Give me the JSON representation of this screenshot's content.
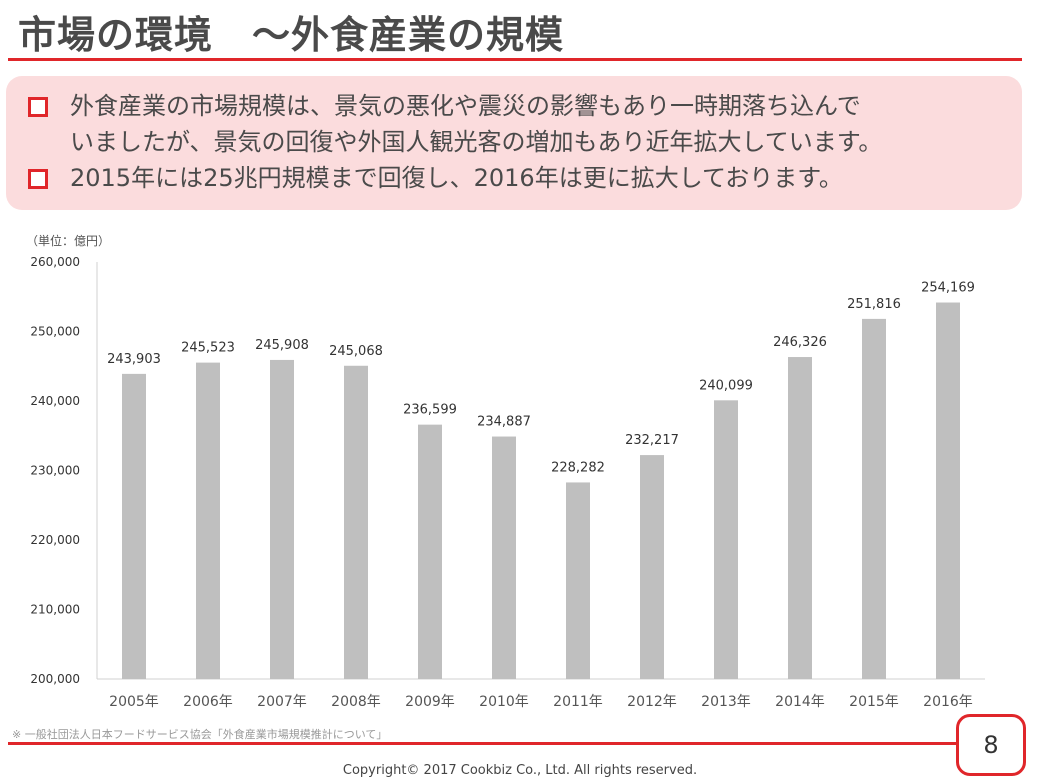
{
  "slide": {
    "title": "市場の環境　～外食産業の規模",
    "bullets": [
      "外食産業の市場規模は、景気の悪化や震災の影響もあり一時期落ち込んで\nいましたが、景気の回復や外国人観光客の増加もあり近年拡大しています。",
      "2015年には25兆円規模まで回復し、2016年は更に拡大しております。"
    ],
    "unit_note": "（単位：億円）",
    "source_note": "※ 一般社団法人日本フードサービス協会「外食産業市場規模推計について」",
    "page_number": "8",
    "copyright": "Copyright© 2017 Cookbiz Co., Ltd. All rights reserved."
  },
  "colors": {
    "accent": "#e0262a",
    "callout_bg": "#fbdcdd",
    "bar": "#bfbfbf"
  },
  "chart_data": {
    "type": "bar",
    "categories": [
      "2005年",
      "2006年",
      "2007年",
      "2008年",
      "2009年",
      "2010年",
      "2011年",
      "2012年",
      "2013年",
      "2014年",
      "2015年",
      "2016年"
    ],
    "values": [
      243903,
      245523,
      245908,
      245068,
      236599,
      234887,
      228282,
      232217,
      240099,
      246326,
      251816,
      254169
    ],
    "value_labels": [
      "243,903",
      "245,523",
      "245,908",
      "245,068",
      "236,599",
      "234,887",
      "228,282",
      "232,217",
      "240,099",
      "246,326",
      "251,816",
      "254,169"
    ],
    "y_ticks": [
      200000,
      210000,
      220000,
      230000,
      240000,
      250000,
      260000
    ],
    "y_tick_labels": [
      "200,000",
      "210,000",
      "220,000",
      "230,000",
      "240,000",
      "250,000",
      "260,000"
    ],
    "ylim": [
      200000,
      260000
    ],
    "title": "",
    "xlabel": "",
    "ylabel": "",
    "grid": false,
    "legend": "none"
  }
}
